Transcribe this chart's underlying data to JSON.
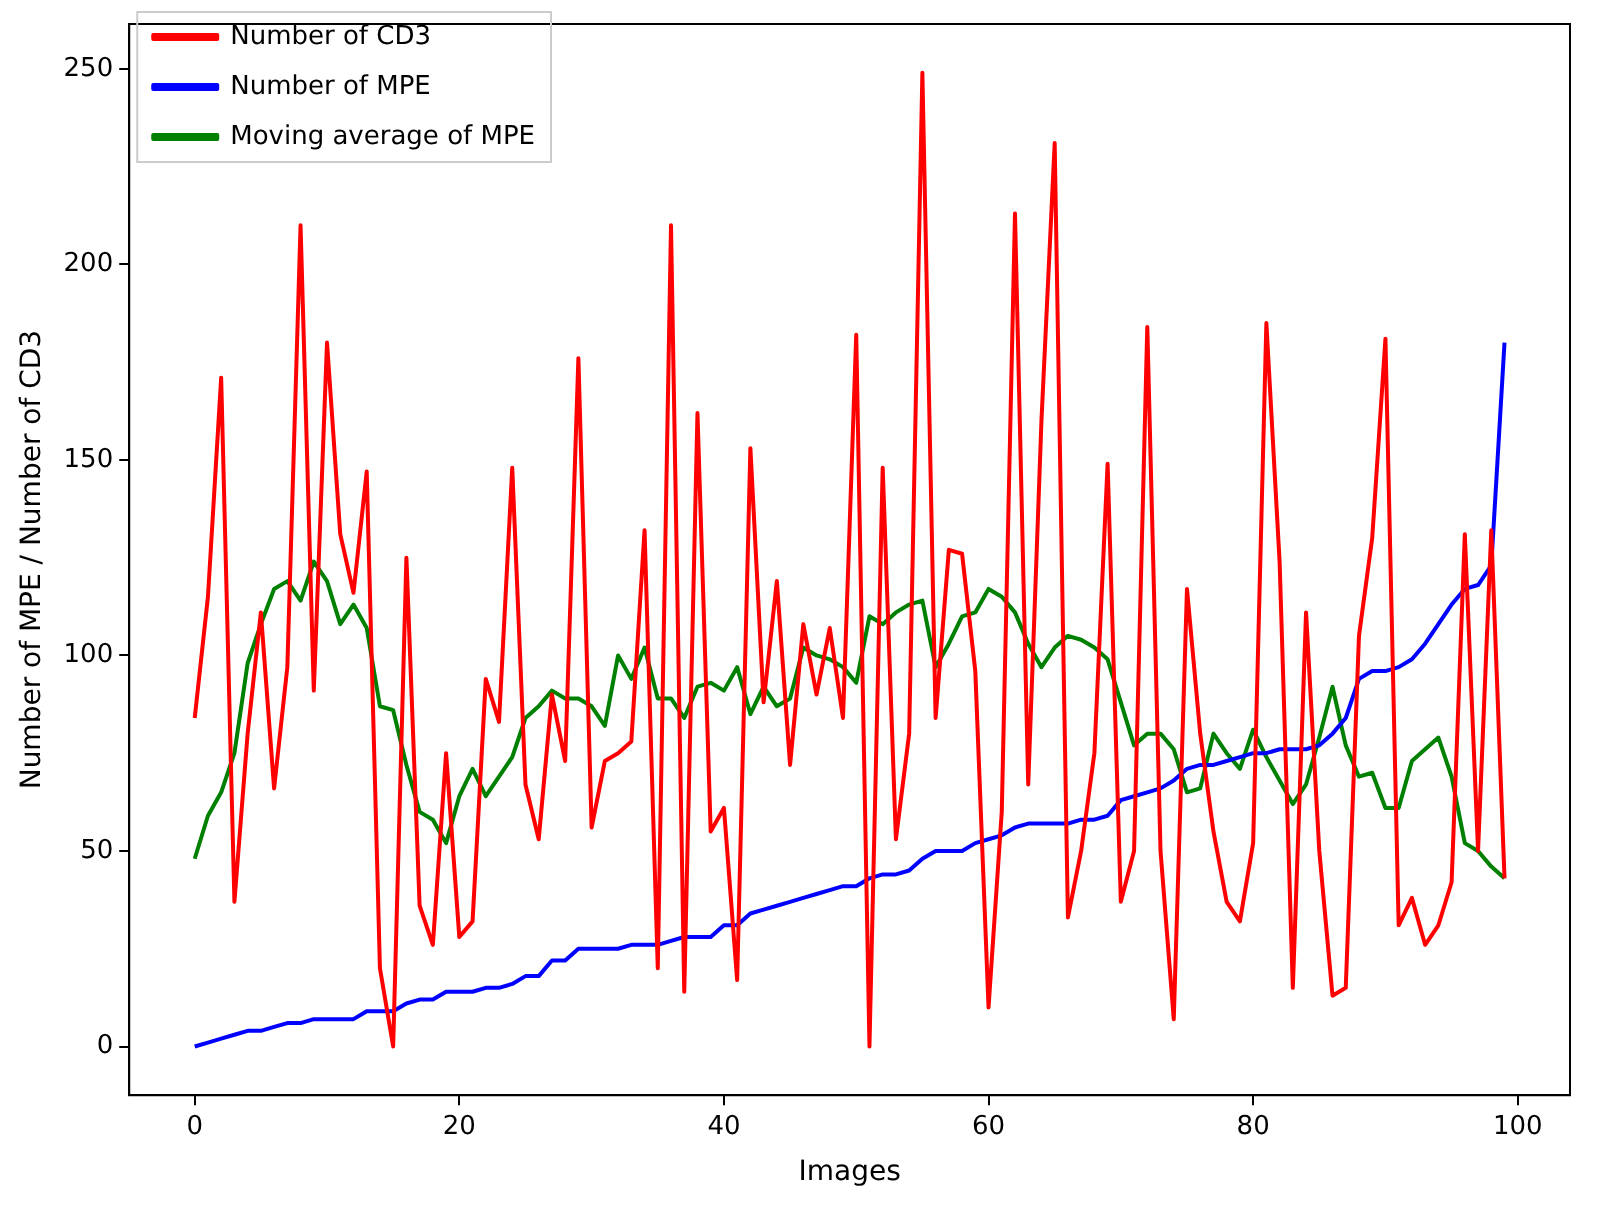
{
  "chart_data": {
    "type": "line",
    "xlabel": "Images",
    "ylabel": "Number of MPE / Number of CD3",
    "legend": "top left",
    "grid": false,
    "x": [
      0,
      1,
      2,
      3,
      4,
      5,
      6,
      7,
      8,
      9,
      10,
      11,
      12,
      13,
      14,
      15,
      16,
      17,
      18,
      19,
      20,
      21,
      22,
      23,
      24,
      25,
      26,
      27,
      28,
      29,
      30,
      31,
      32,
      33,
      34,
      35,
      36,
      37,
      38,
      39,
      40,
      41,
      42,
      43,
      44,
      45,
      46,
      47,
      48,
      49,
      50,
      51,
      52,
      53,
      54,
      55,
      56,
      57,
      58,
      59,
      60,
      61,
      62,
      63,
      64,
      65,
      66,
      67,
      68,
      69,
      70,
      71,
      72,
      73,
      74,
      75,
      76,
      77,
      78,
      79,
      80,
      81,
      82,
      83,
      84,
      85,
      86,
      87,
      88,
      89,
      90,
      91,
      92,
      93,
      94,
      95,
      96,
      97,
      98,
      99
    ],
    "xlim": [
      -4.95,
      103.95
    ],
    "xticks": [
      0,
      20,
      40,
      60,
      80,
      100
    ],
    "ylim": [
      -12.45,
      261.45
    ],
    "yticks": [
      0,
      50,
      100,
      150,
      200,
      250
    ],
    "series": [
      {
        "name": "Number of CD3",
        "color": "#ff0000",
        "values": [
          84,
          115,
          171,
          37,
          80,
          111,
          66,
          97,
          210,
          91,
          180,
          131,
          116,
          147,
          20,
          0,
          125,
          36,
          26,
          75,
          28,
          32,
          94,
          83,
          148,
          67,
          53,
          90,
          73,
          176,
          56,
          73,
          75,
          78,
          132,
          20,
          210,
          14,
          162,
          55,
          61,
          17,
          153,
          88,
          119,
          72,
          108,
          90,
          107,
          84,
          182,
          0,
          148,
          53,
          80,
          249,
          84,
          127,
          126,
          96,
          10,
          60,
          213,
          67,
          160,
          231,
          33,
          50,
          75,
          149,
          37,
          50,
          184,
          50,
          7,
          117,
          80,
          55,
          37,
          32,
          52,
          185,
          124,
          15,
          111,
          50,
          13,
          15,
          105,
          130,
          181,
          31,
          38,
          26,
          31,
          42,
          131,
          50,
          132,
          43
        ]
      },
      {
        "name": "Number of MPE",
        "color": "#0000ff",
        "values": [
          0,
          1,
          2,
          3,
          4,
          4,
          5,
          6,
          6,
          7,
          7,
          7,
          7,
          9,
          9,
          9,
          11,
          12,
          12,
          14,
          14,
          14,
          15,
          15,
          16,
          18,
          18,
          22,
          22,
          25,
          25,
          25,
          25,
          26,
          26,
          26,
          27,
          28,
          28,
          28,
          31,
          31,
          34,
          35,
          36,
          37,
          38,
          39,
          40,
          41,
          41,
          43,
          44,
          44,
          45,
          48,
          50,
          50,
          50,
          52,
          53,
          54,
          56,
          57,
          57,
          57,
          57,
          58,
          58,
          59,
          63,
          64,
          65,
          66,
          68,
          71,
          72,
          72,
          73,
          74,
          75,
          75,
          76,
          76,
          76,
          77,
          80,
          84,
          94,
          96,
          96,
          97,
          99,
          103,
          108,
          113,
          117,
          118,
          123,
          180
        ]
      },
      {
        "name": "Moving average of MPE",
        "color": "#008000",
        "values": [
          48,
          59,
          65,
          75,
          98,
          108,
          117,
          119,
          114,
          124,
          119,
          108,
          113,
          107,
          87,
          86,
          72,
          60,
          58,
          52,
          64,
          71,
          64,
          69,
          74,
          84,
          87,
          91,
          89,
          89,
          87,
          82,
          100,
          94,
          102,
          89,
          89,
          84,
          92,
          93,
          91,
          97,
          85,
          92,
          87,
          89,
          102,
          100,
          99,
          97,
          93,
          110,
          108,
          111,
          113,
          114,
          97,
          103,
          110,
          111,
          117,
          115,
          111,
          103,
          97,
          102,
          105,
          104,
          102,
          99,
          88,
          77,
          80,
          80,
          76,
          65,
          66,
          80,
          75,
          71,
          81,
          74,
          68,
          62,
          67,
          79,
          92,
          77,
          69,
          70,
          61,
          61,
          73,
          76,
          79,
          69,
          52,
          50,
          46,
          43
        ]
      }
    ]
  }
}
